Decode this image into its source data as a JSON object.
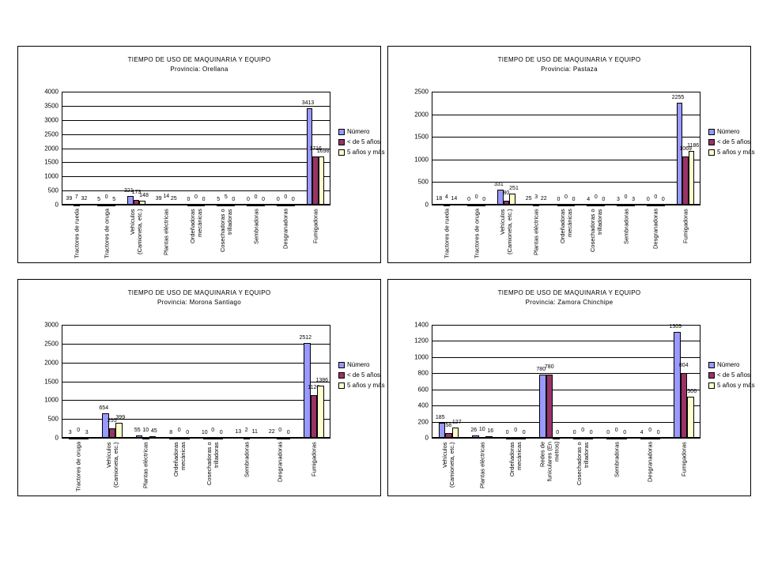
{
  "chart_data": [
    {
      "type": "bar",
      "title": "TIEMPO DE USO DE MAQUINARIA Y EQUIPO",
      "subtitle": "Provincia: Orellana",
      "categories": [
        "Tractores de rueda",
        "Tractores de oruga",
        "Vehículos (Camioneta, etc.)",
        "Plantas eléctricas",
        "Ordeñadoras mecánicas",
        "Cosechadoras o trilladoras",
        "Sembradoras",
        "Desgranadoras",
        "Fumigadoras"
      ],
      "series": [
        {
          "name": "Número",
          "color": "#9999ff",
          "values": [
            39,
            5,
            321,
            39,
            0,
            5,
            0,
            0,
            3413
          ]
        },
        {
          "name": "< de 5 años",
          "color": "#993366",
          "values": [
            7,
            0,
            173,
            14,
            0,
            5,
            0,
            0,
            1716
          ]
        },
        {
          "name": "5 años y más",
          "color": "#ffffcc",
          "values": [
            32,
            5,
            148,
            25,
            0,
            0,
            0,
            0,
            1698
          ]
        }
      ],
      "ylim": [
        0,
        4000
      ],
      "yticks": [
        0,
        500,
        1000,
        1500,
        2000,
        2500,
        3000,
        3500,
        4000
      ],
      "grid": true,
      "legend": "right"
    },
    {
      "type": "bar",
      "title": "TIEMPO DE USO DE MAQUINARIA Y EQUIPO",
      "subtitle": "Provincia: Pastaza",
      "categories": [
        "Tractores de rueda",
        "Tractores de oruga",
        "Vehículos (Camioneta, etc.)",
        "Plantas eléctricas",
        "Ordeñadoras mecánicas",
        "Cosechadoras o trilladoras",
        "Sembradoras",
        "Desgranadoras",
        "Fumigadoras"
      ],
      "series": [
        {
          "name": "Número",
          "color": "#9999ff",
          "values": [
            18,
            0,
            331,
            25,
            0,
            4,
            3,
            0,
            2255
          ]
        },
        {
          "name": "< de 5 años",
          "color": "#993366",
          "values": [
            4,
            0,
            80,
            3,
            0,
            0,
            0,
            0,
            1069
          ]
        },
        {
          "name": "5 años y más",
          "color": "#ffffcc",
          "values": [
            14,
            0,
            251,
            22,
            0,
            0,
            3,
            0,
            1186
          ]
        }
      ],
      "ylim": [
        0,
        2500
      ],
      "yticks": [
        0,
        500,
        1000,
        1500,
        2000,
        2500
      ],
      "grid": true,
      "legend": "right"
    },
    {
      "type": "bar",
      "title": "TIEMPO DE USO DE MAQUINARIA Y EQUIPO",
      "subtitle": "Provincia: Morona Santiago",
      "categories": [
        "Tractores de oruga",
        "Vehículos (Camioneta, etc.)",
        "Plantas eléctricas",
        "Ordeñadoras mecánicas",
        "Cosechadoras o trilladoras",
        "Sembradoras",
        "Desgranadoras",
        "Fumigadoras"
      ],
      "series": [
        {
          "name": "Número",
          "color": "#9999ff",
          "values": [
            3,
            654,
            55,
            8,
            10,
            13,
            22,
            2512
          ]
        },
        {
          "name": "< de 5 años",
          "color": "#993366",
          "values": [
            0,
            255,
            10,
            0,
            0,
            2,
            0,
            1126
          ]
        },
        {
          "name": "5 años y más",
          "color": "#ffffcc",
          "values": [
            3,
            399,
            45,
            0,
            0,
            11,
            0,
            1386
          ]
        }
      ],
      "ylim": [
        0,
        3000
      ],
      "yticks": [
        0,
        500,
        1000,
        1500,
        2000,
        2500,
        3000
      ],
      "grid": true,
      "legend": "right"
    },
    {
      "type": "bar",
      "title": "TIEMPO DE USO DE MAQUINARIA Y EQUIPO",
      "subtitle": "Provincia: Zamora Chinchipe",
      "categories": [
        "Vehículos (Camioneta, etc.)",
        "Plantas eléctricas",
        "Ordeñadoras mecánicas",
        "Redes de funiculares (En metros)",
        "Cosechadoras o trilladoras",
        "Sembradoras",
        "Desgranadoras",
        "Fumigadoras"
      ],
      "series": [
        {
          "name": "Número",
          "color": "#9999ff",
          "values": [
            185,
            26,
            0,
            780,
            0,
            0,
            4,
            1309
          ]
        },
        {
          "name": "< de 5 años",
          "color": "#993366",
          "values": [
            58,
            10,
            0,
            780,
            0,
            0,
            0,
            804
          ]
        },
        {
          "name": "5 años y más",
          "color": "#ffffcc",
          "values": [
            127,
            16,
            0,
            0,
            0,
            0,
            0,
            506
          ]
        }
      ],
      "ylim": [
        0,
        1400
      ],
      "yticks": [
        0,
        200,
        400,
        600,
        800,
        1000,
        1200,
        1400
      ],
      "grid": true,
      "legend": "right"
    }
  ]
}
